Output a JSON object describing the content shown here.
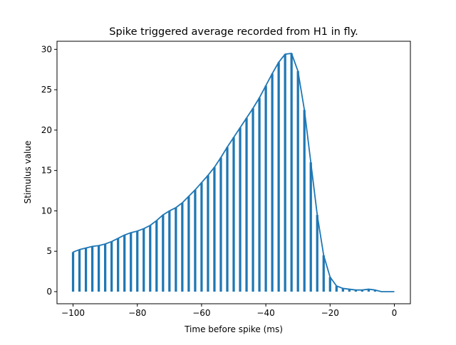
{
  "chart_data": {
    "type": "bar",
    "title": "Spike triggered average recorded from H1 in fly.",
    "xlabel": "Time before spike (ms)",
    "ylabel": "Stimulus value",
    "xlim": [
      -105,
      5
    ],
    "ylim": [
      -1.5,
      31
    ],
    "x_ticks": [
      -100,
      -80,
      -60,
      -40,
      -20,
      0
    ],
    "x_tick_labels": [
      "−100",
      "−80",
      "−60",
      "−40",
      "−20",
      "0"
    ],
    "y_ticks": [
      0,
      5,
      10,
      15,
      20,
      25,
      30
    ],
    "y_tick_labels": [
      "0",
      "5",
      "10",
      "15",
      "20",
      "25",
      "30"
    ],
    "grid": false,
    "color": "#1f77b4",
    "x": [
      -100,
      -98,
      -96,
      -94,
      -92,
      -90,
      -88,
      -86,
      -84,
      -82,
      -80,
      -78,
      -76,
      -74,
      -72,
      -70,
      -68,
      -66,
      -64,
      -62,
      -60,
      -58,
      -56,
      -54,
      -52,
      -50,
      -48,
      -46,
      -44,
      -42,
      -40,
      -38,
      -36,
      -34,
      -32,
      -30,
      -28,
      -26,
      -24,
      -22,
      -20,
      -18,
      -16,
      -14,
      -12,
      -10,
      -8,
      -6,
      -4,
      -2,
      0
    ],
    "series": [
      {
        "values": [
          4.9,
          5.2,
          5.4,
          5.6,
          5.7,
          5.9,
          6.2,
          6.6,
          7.0,
          7.3,
          7.5,
          7.8,
          8.2,
          8.8,
          9.5,
          10.0,
          10.4,
          11.0,
          11.8,
          12.6,
          13.5,
          14.4,
          15.4,
          16.6,
          17.9,
          19.1,
          20.3,
          21.5,
          22.7,
          24.0,
          25.5,
          27.0,
          28.4,
          29.4,
          29.5,
          27.3,
          22.5,
          16.0,
          9.5,
          4.5,
          1.8,
          0.7,
          0.4,
          0.3,
          0.2,
          0.2,
          0.3,
          0.2,
          0.0,
          0.0,
          0.0
        ]
      }
    ]
  }
}
